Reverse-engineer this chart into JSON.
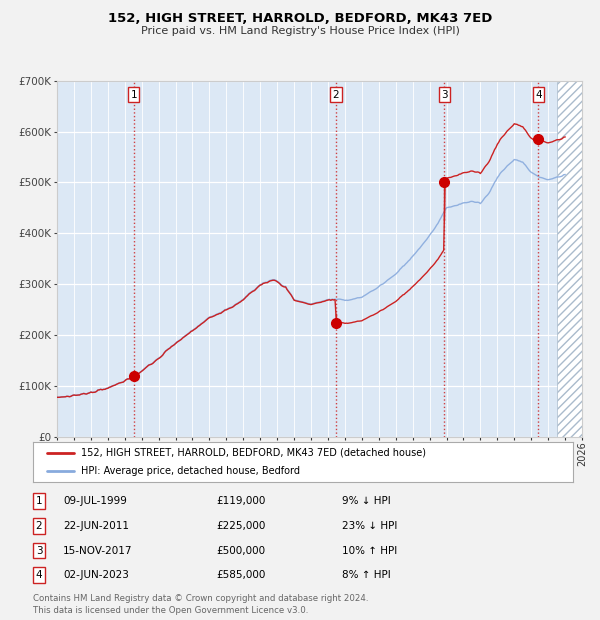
{
  "title": "152, HIGH STREET, HARROLD, BEDFORD, MK43 7ED",
  "subtitle": "Price paid vs. HM Land Registry's House Price Index (HPI)",
  "bg_color": "#f2f2f2",
  "plot_bg_color": "#dce8f5",
  "hatch_color": "#b0c8e0",
  "sale_dates_decimal": [
    1999.53,
    2011.47,
    2017.87,
    2023.42
  ],
  "sale_prices": [
    119000,
    225000,
    500000,
    585000
  ],
  "sale_labels": [
    "1",
    "2",
    "3",
    "4"
  ],
  "sale_info": [
    {
      "num": "1",
      "date": "09-JUL-1999",
      "price": "£119,000",
      "pct": "9% ↓ HPI"
    },
    {
      "num": "2",
      "date": "22-JUN-2011",
      "price": "£225,000",
      "pct": "23% ↓ HPI"
    },
    {
      "num": "3",
      "date": "15-NOV-2017",
      "price": "£500,000",
      "pct": "10% ↑ HPI"
    },
    {
      "num": "4",
      "date": "02-JUN-2023",
      "price": "£585,000",
      "pct": "8% ↑ HPI"
    }
  ],
  "hpi_line_color": "#88aadd",
  "price_line_color": "#cc2222",
  "sale_dot_color": "#cc0000",
  "vline_color": "#cc2222",
  "footer": "Contains HM Land Registry data © Crown copyright and database right 2024.\nThis data is licensed under the Open Government Licence v3.0.",
  "legend_label_price": "152, HIGH STREET, HARROLD, BEDFORD, MK43 7ED (detached house)",
  "legend_label_hpi": "HPI: Average price, detached house, Bedford",
  "xmin": 1995,
  "xmax": 2026,
  "ymin": 0,
  "ymax": 700000
}
